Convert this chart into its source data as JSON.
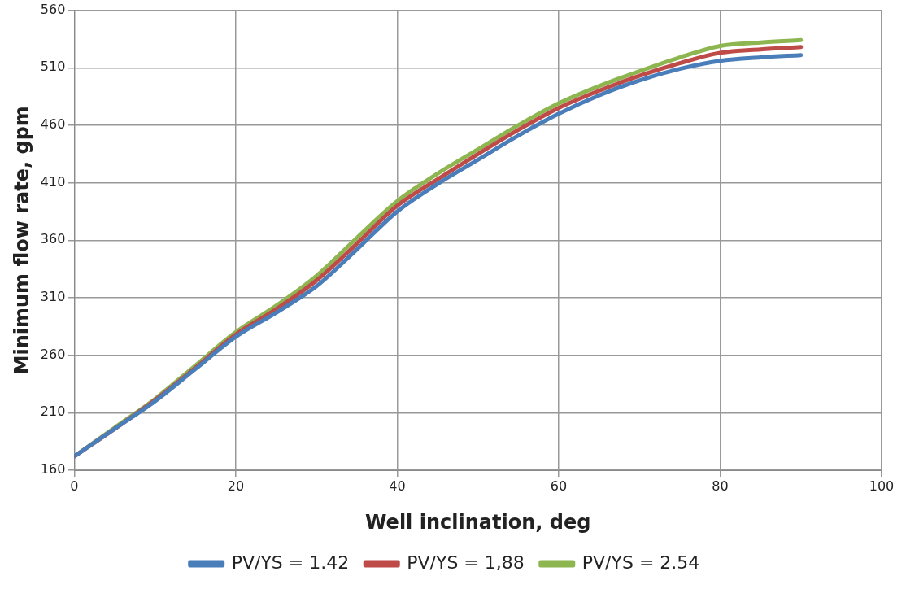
{
  "chart_data": {
    "type": "line",
    "xlabel": "Well inclination, deg",
    "ylabel": "Minimum flow rate, gpm",
    "x": [
      0,
      5,
      10,
      15,
      20,
      25,
      30,
      35,
      40,
      45,
      50,
      55,
      60,
      65,
      70,
      75,
      80,
      85,
      90
    ],
    "series": [
      {
        "name": "PV/YS = 1.42",
        "color": "#4a7ebb",
        "values": [
          172,
          196,
          220,
          248,
          276,
          297,
          320,
          352,
          385,
          409,
          430,
          451,
          470,
          486,
          499,
          509,
          516,
          519,
          521
        ]
      },
      {
        "name": "PV/YS = 1,88",
        "color": "#be4b48",
        "values": [
          172,
          196,
          221,
          249,
          278,
          300,
          325,
          357,
          390,
          413,
          435,
          456,
          475,
          490,
          503,
          514,
          523,
          526,
          528
        ]
      },
      {
        "name": "PV/YS = 2.54",
        "color": "#8db550",
        "values": [
          172,
          197,
          222,
          251,
          280,
          303,
          329,
          362,
          394,
          418,
          439,
          460,
          479,
          494,
          507,
          519,
          529,
          532,
          534
        ]
      }
    ],
    "xlim": [
      0,
      100
    ],
    "xticks": [
      0,
      20,
      40,
      60,
      80,
      100
    ],
    "ylim": [
      160,
      560
    ],
    "yticks": [
      160,
      210,
      260,
      310,
      360,
      410,
      460,
      510,
      560
    ],
    "grid": true,
    "legend": "bottom",
    "marker": "none",
    "line_style": "solid"
  }
}
